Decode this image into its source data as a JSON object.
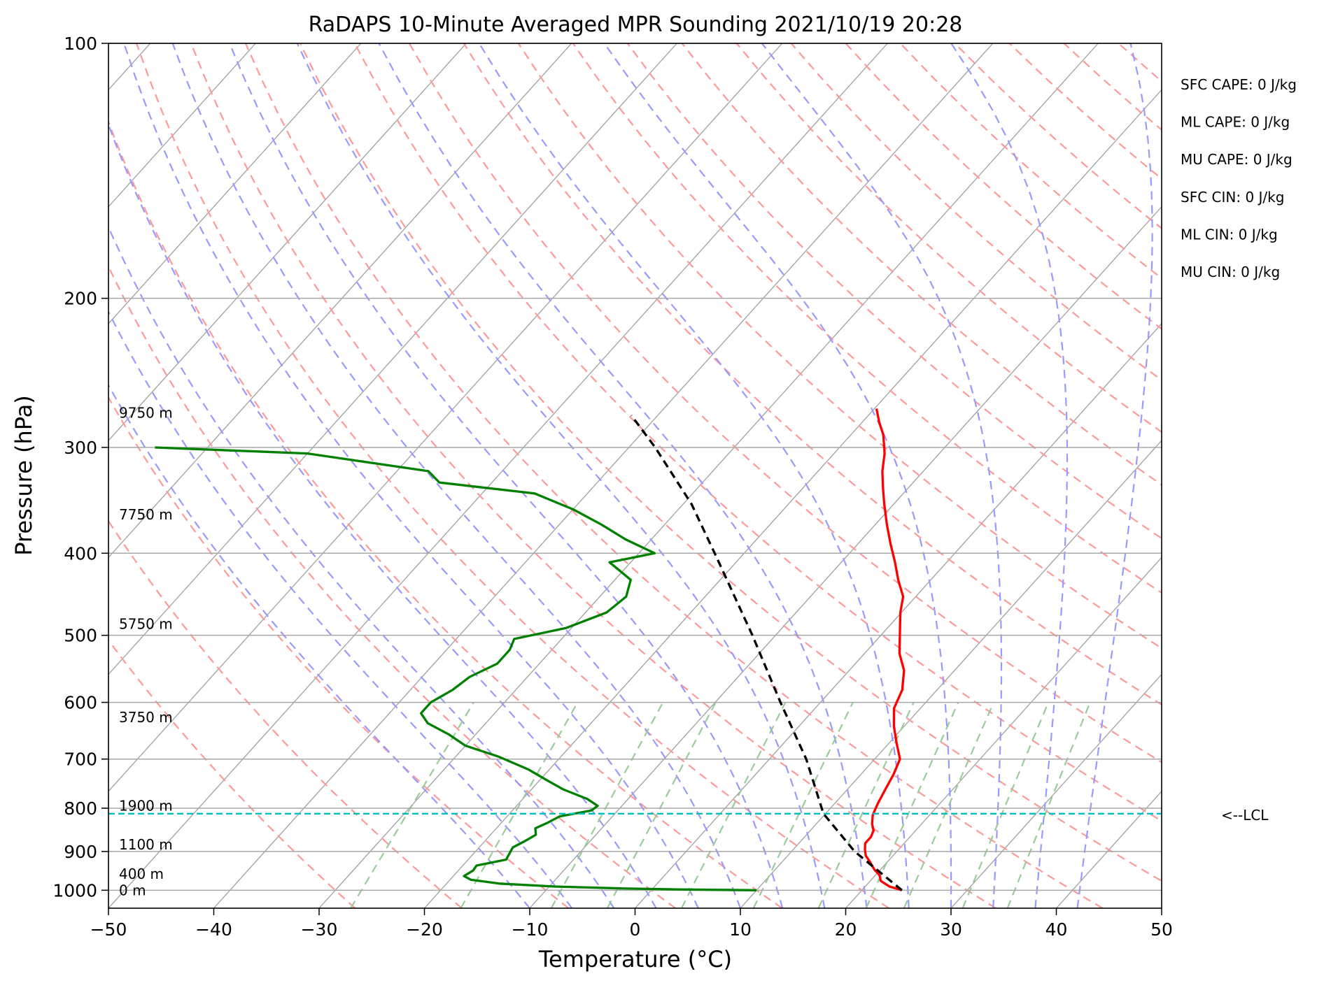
{
  "chart_data": {
    "type": "line",
    "title": "RaDAPS 10-Minute Averaged MPR Sounding 2021/10/19 20:28",
    "xlabel": "Temperature (°C)",
    "ylabel": "Pressure (hPa)",
    "xlim": [
      -50,
      50
    ],
    "ylim": [
      1050,
      100
    ],
    "y_scale": "log",
    "skew": "skew-T",
    "x_ticks": [
      -50,
      -40,
      -30,
      -20,
      -10,
      0,
      10,
      20,
      30,
      40,
      50
    ],
    "x_tick_labels": [
      "−50",
      "−40",
      "−30",
      "−20",
      "−10",
      "0",
      "10",
      "20",
      "30",
      "40",
      "50"
    ],
    "y_ticks": [
      100,
      200,
      300,
      400,
      500,
      600,
      700,
      800,
      900,
      1000
    ],
    "y_tick_labels": [
      "100",
      "200",
      "300",
      "400",
      "500",
      "600",
      "700",
      "800",
      "900",
      "1000"
    ],
    "grid": true,
    "series": [
      {
        "role": "temperature",
        "color": "#ff0000",
        "points": [
          [
            1000,
            23.8
          ],
          [
            990,
            22.3
          ],
          [
            975,
            21.0
          ],
          [
            960,
            20.4
          ],
          [
            945,
            19.4
          ],
          [
            925,
            18.3
          ],
          [
            910,
            17.4
          ],
          [
            895,
            16.8
          ],
          [
            880,
            16.3
          ],
          [
            865,
            16.3
          ],
          [
            850,
            16.0
          ],
          [
            835,
            15.3
          ],
          [
            815,
            14.6
          ],
          [
            790,
            14.1
          ],
          [
            760,
            13.6
          ],
          [
            730,
            13.1
          ],
          [
            700,
            12.4
          ],
          [
            670,
            10.7
          ],
          [
            640,
            9.0
          ],
          [
            610,
            7.5
          ],
          [
            580,
            6.7
          ],
          [
            550,
            5.2
          ],
          [
            525,
            3.3
          ],
          [
            500,
            1.8
          ],
          [
            470,
            -0.1
          ],
          [
            450,
            -1.2
          ],
          [
            430,
            -3.1
          ],
          [
            410,
            -4.9
          ],
          [
            390,
            -6.9
          ],
          [
            370,
            -8.9
          ],
          [
            350,
            -10.9
          ],
          [
            335,
            -12.4
          ],
          [
            320,
            -13.9
          ],
          [
            305,
            -15.2
          ],
          [
            290,
            -16.9
          ],
          [
            280,
            -18.4
          ],
          [
            270,
            -19.8
          ]
        ]
      },
      {
        "role": "dewpoint",
        "color": "#008000",
        "points": [
          [
            1000,
            10.0
          ],
          [
            998,
            3.0
          ],
          [
            995,
            -3.0
          ],
          [
            990,
            -9.5
          ],
          [
            982,
            -15.0
          ],
          [
            972,
            -18.0
          ],
          [
            962,
            -19.0
          ],
          [
            948,
            -18.6
          ],
          [
            935,
            -18.7
          ],
          [
            920,
            -16.4
          ],
          [
            905,
            -16.6
          ],
          [
            890,
            -16.8
          ],
          [
            875,
            -16.2
          ],
          [
            860,
            -15.7
          ],
          [
            845,
            -16.3
          ],
          [
            832,
            -15.6
          ],
          [
            818,
            -15.0
          ],
          [
            805,
            -12.5
          ],
          [
            795,
            -12.3
          ],
          [
            780,
            -13.9
          ],
          [
            760,
            -17.0
          ],
          [
            740,
            -19.5
          ],
          [
            720,
            -22.0
          ],
          [
            695,
            -26.0
          ],
          [
            675,
            -30.0
          ],
          [
            655,
            -32.5
          ],
          [
            635,
            -35.5
          ],
          [
            618,
            -37.0
          ],
          [
            600,
            -37.0
          ],
          [
            580,
            -36.0
          ],
          [
            560,
            -35.5
          ],
          [
            540,
            -34.0
          ],
          [
            520,
            -34.0
          ],
          [
            505,
            -34.5
          ],
          [
            490,
            -30.5
          ],
          [
            470,
            -28.0
          ],
          [
            450,
            -27.5
          ],
          [
            430,
            -28.5
          ],
          [
            410,
            -32.0
          ],
          [
            400,
            -28.5
          ],
          [
            385,
            -32.5
          ],
          [
            370,
            -36.0
          ],
          [
            355,
            -40.0
          ],
          [
            340,
            -45.0
          ],
          [
            330,
            -55.0
          ],
          [
            320,
            -57.0
          ],
          [
            305,
            -70.0
          ],
          [
            300,
            -85.0
          ]
        ]
      },
      {
        "role": "parcel",
        "color": "#000000",
        "style": "dashed",
        "points": [
          [
            1000,
            23.8
          ],
          [
            900,
            16.0
          ],
          [
            812,
            9.8
          ],
          [
            700,
            3.5
          ],
          [
            600,
            -3.8
          ],
          [
            500,
            -12.2
          ],
          [
            400,
            -22.8
          ],
          [
            350,
            -29.2
          ],
          [
            300,
            -37.5
          ],
          [
            275,
            -42.5
          ]
        ]
      }
    ],
    "lcl_pressure": 812,
    "lcl_label": "<--LCL",
    "lcl_color": "#00bfbf",
    "height_labels": [
      {
        "pressure": 273,
        "label": "9750 m"
      },
      {
        "pressure": 360,
        "label": "7750 m"
      },
      {
        "pressure": 485,
        "label": "5750 m"
      },
      {
        "pressure": 625,
        "label": "3750 m"
      },
      {
        "pressure": 795,
        "label": "1900 m"
      },
      {
        "pressure": 883,
        "label": "1100 m"
      },
      {
        "pressure": 957,
        "label": "400 m"
      },
      {
        "pressure": 1000,
        "label": "0 m"
      }
    ],
    "annotations": [
      "SFC CAPE: 0 J/kg",
      "ML CAPE: 0 J/kg",
      "MU CAPE: 0 J/kg",
      "SFC CIN: 0 J/kg",
      "ML CIN: 0 J/kg",
      "MU CIN: 0 J/kg"
    ],
    "background_lines": {
      "isotherms": {
        "color": "#a0a0a0"
      },
      "dry_adiabats": {
        "color": "#ff9999",
        "style": "dashed"
      },
      "moist_adiabats": {
        "color": "#9999ff",
        "style": "dashed"
      },
      "mixing_ratio": {
        "color": "#99cc99",
        "style": "dashed"
      }
    }
  }
}
